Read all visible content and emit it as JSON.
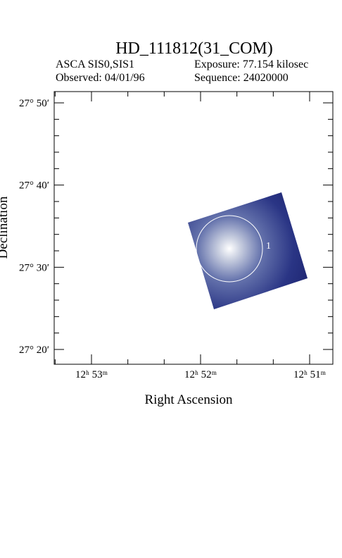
{
  "header": {
    "title": "HD_111812(31_COM)",
    "instrument": "ASCA SIS0,SIS1",
    "exposure": "Exposure: 77.154 kilosec",
    "observed": "Observed: 04/01/96",
    "sequence": "Sequence: 24020000"
  },
  "axes": {
    "x_label": "Right Ascension",
    "y_label": "Declination",
    "x_tick_labels": [
      "12ʰ 53ᵐ",
      "12ʰ 52ᵐ",
      "12ʰ 51ᵐ"
    ],
    "y_tick_labels": [
      "27° 50′",
      "27° 40′",
      "27° 30′",
      "27° 20′"
    ]
  },
  "sources": [
    {
      "label": "1"
    }
  ]
}
